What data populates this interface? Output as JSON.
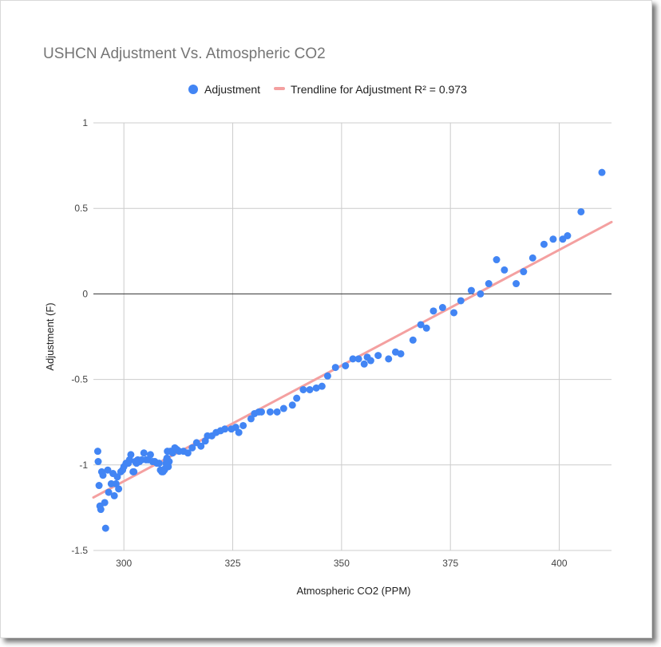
{
  "chart_data": {
    "type": "scatter",
    "title": "USHCN Adjustment Vs. Atmospheric CO2",
    "xlabel": "Atmospheric CO2 (PPM)",
    "ylabel": "Adjustment (F)",
    "xlim": [
      293,
      412
    ],
    "ylim": [
      -1.5,
      1
    ],
    "x_ticks": [
      300,
      325,
      350,
      375,
      400
    ],
    "y_ticks": [
      1,
      0.5,
      0,
      -0.5,
      -1,
      -1.5
    ],
    "x_tick_labels": [
      "300",
      "325",
      "350",
      "375",
      "400"
    ],
    "y_tick_labels": [
      "1",
      "0.5",
      "0",
      "-0.5",
      "-1",
      "-1.5"
    ],
    "grid": true,
    "legend_position": "top",
    "colors": {
      "points": "#4285f4",
      "trendline": "#f4a0a0",
      "grid": "#cccccc",
      "zero_line": "#333333"
    },
    "series": [
      {
        "name": "Adjustment",
        "points": [
          [
            294.0,
            -0.92
          ],
          [
            294.1,
            -0.98
          ],
          [
            294.3,
            -1.12
          ],
          [
            294.5,
            -1.24
          ],
          [
            294.7,
            -1.26
          ],
          [
            294.9,
            -1.04
          ],
          [
            295.2,
            -1.06
          ],
          [
            295.6,
            -1.22
          ],
          [
            295.8,
            -1.37
          ],
          [
            296.3,
            -1.03
          ],
          [
            296.5,
            -1.16
          ],
          [
            297.1,
            -1.11
          ],
          [
            297.5,
            -1.05
          ],
          [
            297.8,
            -1.18
          ],
          [
            298.2,
            -1.11
          ],
          [
            298.5,
            -1.07
          ],
          [
            298.8,
            -1.14
          ],
          [
            299.3,
            -1.04
          ],
          [
            299.7,
            -1.03
          ],
          [
            300.0,
            -1.01
          ],
          [
            300.5,
            -0.99
          ],
          [
            301.0,
            -0.99
          ],
          [
            301.3,
            -0.97
          ],
          [
            301.6,
            -0.94
          ],
          [
            302.1,
            -1.04
          ],
          [
            302.3,
            -1.04
          ],
          [
            302.6,
            -0.98
          ],
          [
            302.9,
            -0.99
          ],
          [
            303.2,
            -0.97
          ],
          [
            303.6,
            -0.98
          ],
          [
            304.1,
            -0.97
          ],
          [
            304.6,
            -0.93
          ],
          [
            305.1,
            -0.97
          ],
          [
            305.6,
            -0.97
          ],
          [
            306.1,
            -0.94
          ],
          [
            306.6,
            -0.98
          ],
          [
            307.1,
            -0.98
          ],
          [
            307.6,
            -0.99
          ],
          [
            308.1,
            -0.99
          ],
          [
            308.4,
            -1.03
          ],
          [
            308.7,
            -1.04
          ],
          [
            309.0,
            -1.04
          ],
          [
            309.3,
            -1.03
          ],
          [
            309.5,
            -1.02
          ],
          [
            309.7,
            -0.99
          ],
          [
            309.8,
            -0.97
          ],
          [
            309.9,
            -0.96
          ],
          [
            310.0,
            -0.92
          ],
          [
            310.2,
            -1.01
          ],
          [
            310.4,
            -0.98
          ],
          [
            310.7,
            -0.92
          ],
          [
            311.2,
            -0.93
          ],
          [
            311.7,
            -0.9
          ],
          [
            312.2,
            -0.91
          ],
          [
            312.7,
            -0.92
          ],
          [
            313.7,
            -0.92
          ],
          [
            314.7,
            -0.93
          ],
          [
            315.7,
            -0.9
          ],
          [
            316.7,
            -0.87
          ],
          [
            317.7,
            -0.89
          ],
          [
            318.7,
            -0.86
          ],
          [
            319.2,
            -0.83
          ],
          [
            320.2,
            -0.83
          ],
          [
            321.2,
            -0.81
          ],
          [
            322.2,
            -0.8
          ],
          [
            323.2,
            -0.79
          ],
          [
            324.7,
            -0.79
          ],
          [
            325.7,
            -0.78
          ],
          [
            326.4,
            -0.81
          ],
          [
            327.4,
            -0.77
          ],
          [
            329.2,
            -0.73
          ],
          [
            330.0,
            -0.7
          ],
          [
            331.0,
            -0.69
          ],
          [
            331.6,
            -0.69
          ],
          [
            333.6,
            -0.69
          ],
          [
            335.2,
            -0.69
          ],
          [
            336.7,
            -0.67
          ],
          [
            338.7,
            -0.65
          ],
          [
            339.7,
            -0.61
          ],
          [
            341.2,
            -0.56
          ],
          [
            342.7,
            -0.56
          ],
          [
            344.2,
            -0.55
          ],
          [
            345.5,
            -0.54
          ],
          [
            346.8,
            -0.48
          ],
          [
            348.6,
            -0.43
          ],
          [
            350.9,
            -0.42
          ],
          [
            352.6,
            -0.38
          ],
          [
            353.9,
            -0.38
          ],
          [
            355.2,
            -0.41
          ],
          [
            355.9,
            -0.37
          ],
          [
            356.7,
            -0.39
          ],
          [
            358.4,
            -0.36
          ],
          [
            360.8,
            -0.38
          ],
          [
            362.4,
            -0.34
          ],
          [
            363.6,
            -0.35
          ],
          [
            366.4,
            -0.27
          ],
          [
            368.2,
            -0.18
          ],
          [
            369.5,
            -0.2
          ],
          [
            371.1,
            -0.1
          ],
          [
            373.2,
            -0.08
          ],
          [
            375.8,
            -0.11
          ],
          [
            377.4,
            -0.04
          ],
          [
            379.8,
            0.02
          ],
          [
            381.9,
            0.0
          ],
          [
            383.8,
            0.06
          ],
          [
            385.6,
            0.2
          ],
          [
            387.4,
            0.14
          ],
          [
            390.1,
            0.06
          ],
          [
            391.8,
            0.13
          ],
          [
            393.9,
            0.21
          ],
          [
            396.5,
            0.29
          ],
          [
            398.6,
            0.32
          ],
          [
            400.8,
            0.32
          ],
          [
            401.9,
            0.34
          ],
          [
            405.0,
            0.48
          ],
          [
            409.8,
            0.71
          ]
        ]
      },
      {
        "name": "Trendline for Adjustment R² = 0.973",
        "type": "line",
        "points": [
          [
            293,
            -1.19
          ],
          [
            412,
            0.42
          ]
        ]
      }
    ]
  }
}
